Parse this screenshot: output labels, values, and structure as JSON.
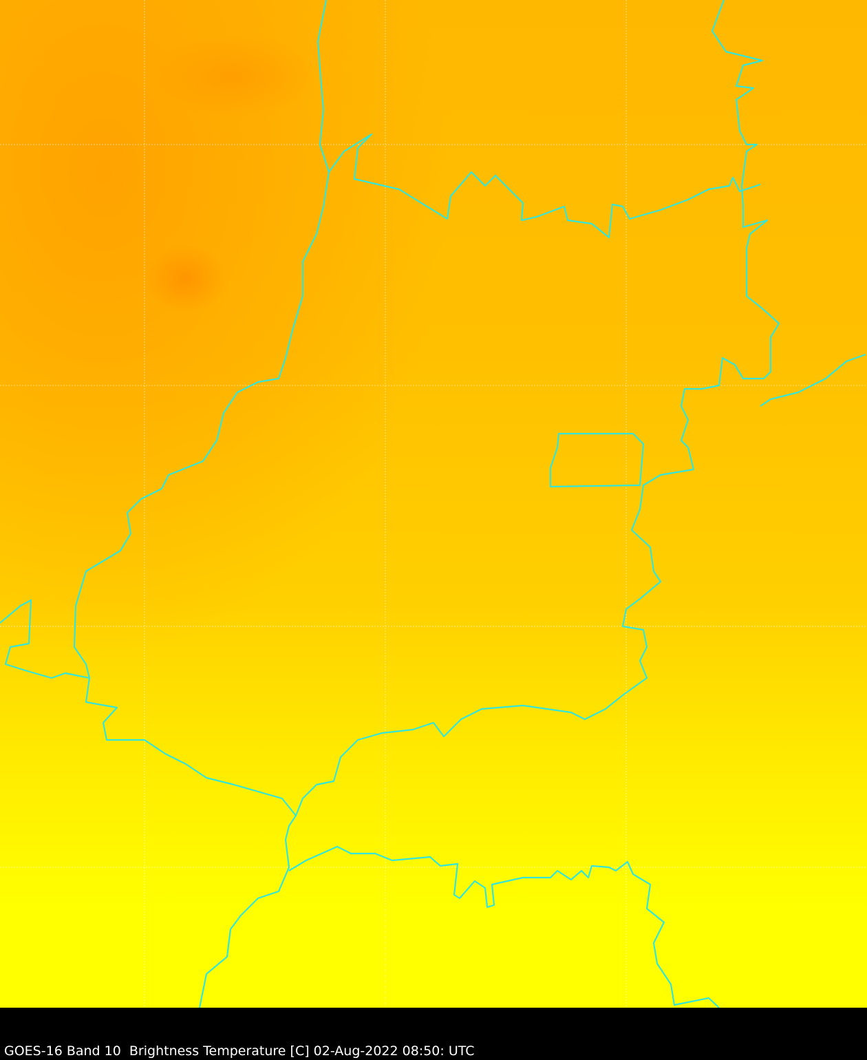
{
  "caption": "GOES-16 Band 10  Brightness Temperature [C] 02-Aug-2022 08:50: UTC",
  "colors": {
    "border": "#33e6d9",
    "grid": "#ffffff",
    "warm": "#ffa000",
    "cold": "#ffff00",
    "background": "#000000"
  },
  "layers": [
    "brightness-temperature-image",
    "state-borders",
    "lat-lon-grid"
  ]
}
